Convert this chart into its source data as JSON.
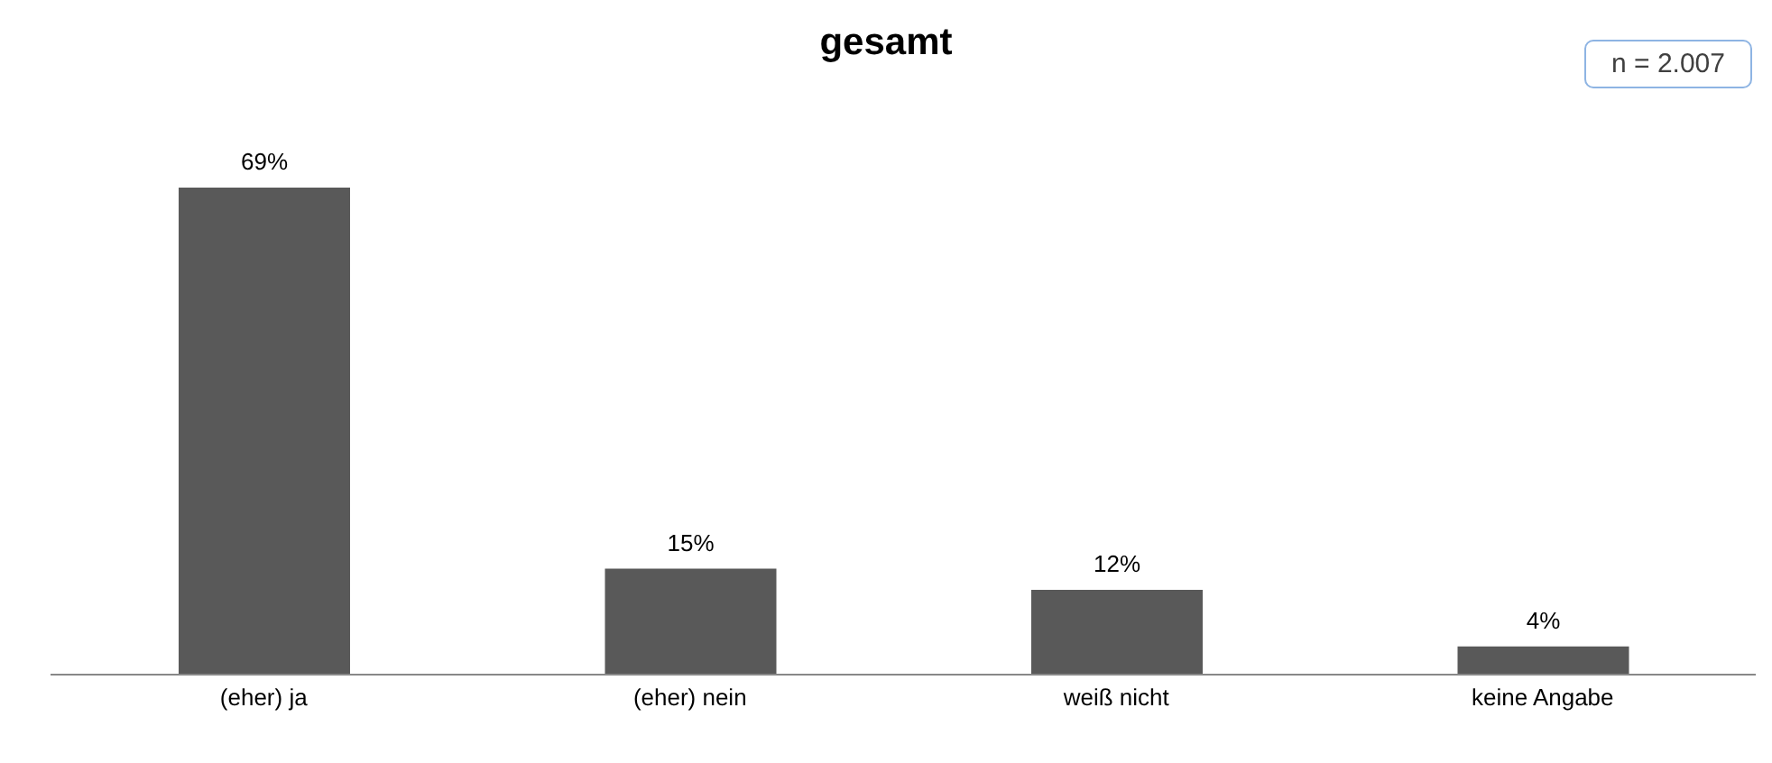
{
  "chart_data": {
    "type": "bar",
    "title": "gesamt",
    "categories": [
      "(eher) ja",
      "(eher) nein",
      "weiß nicht",
      "keine Angabe"
    ],
    "values": [
      69,
      15,
      12,
      4
    ],
    "value_labels": [
      "69%",
      "15%",
      "12%",
      "4%"
    ],
    "color": "#595959",
    "grid": false,
    "legend": false,
    "annotations": [
      "n = 2.007"
    ]
  }
}
